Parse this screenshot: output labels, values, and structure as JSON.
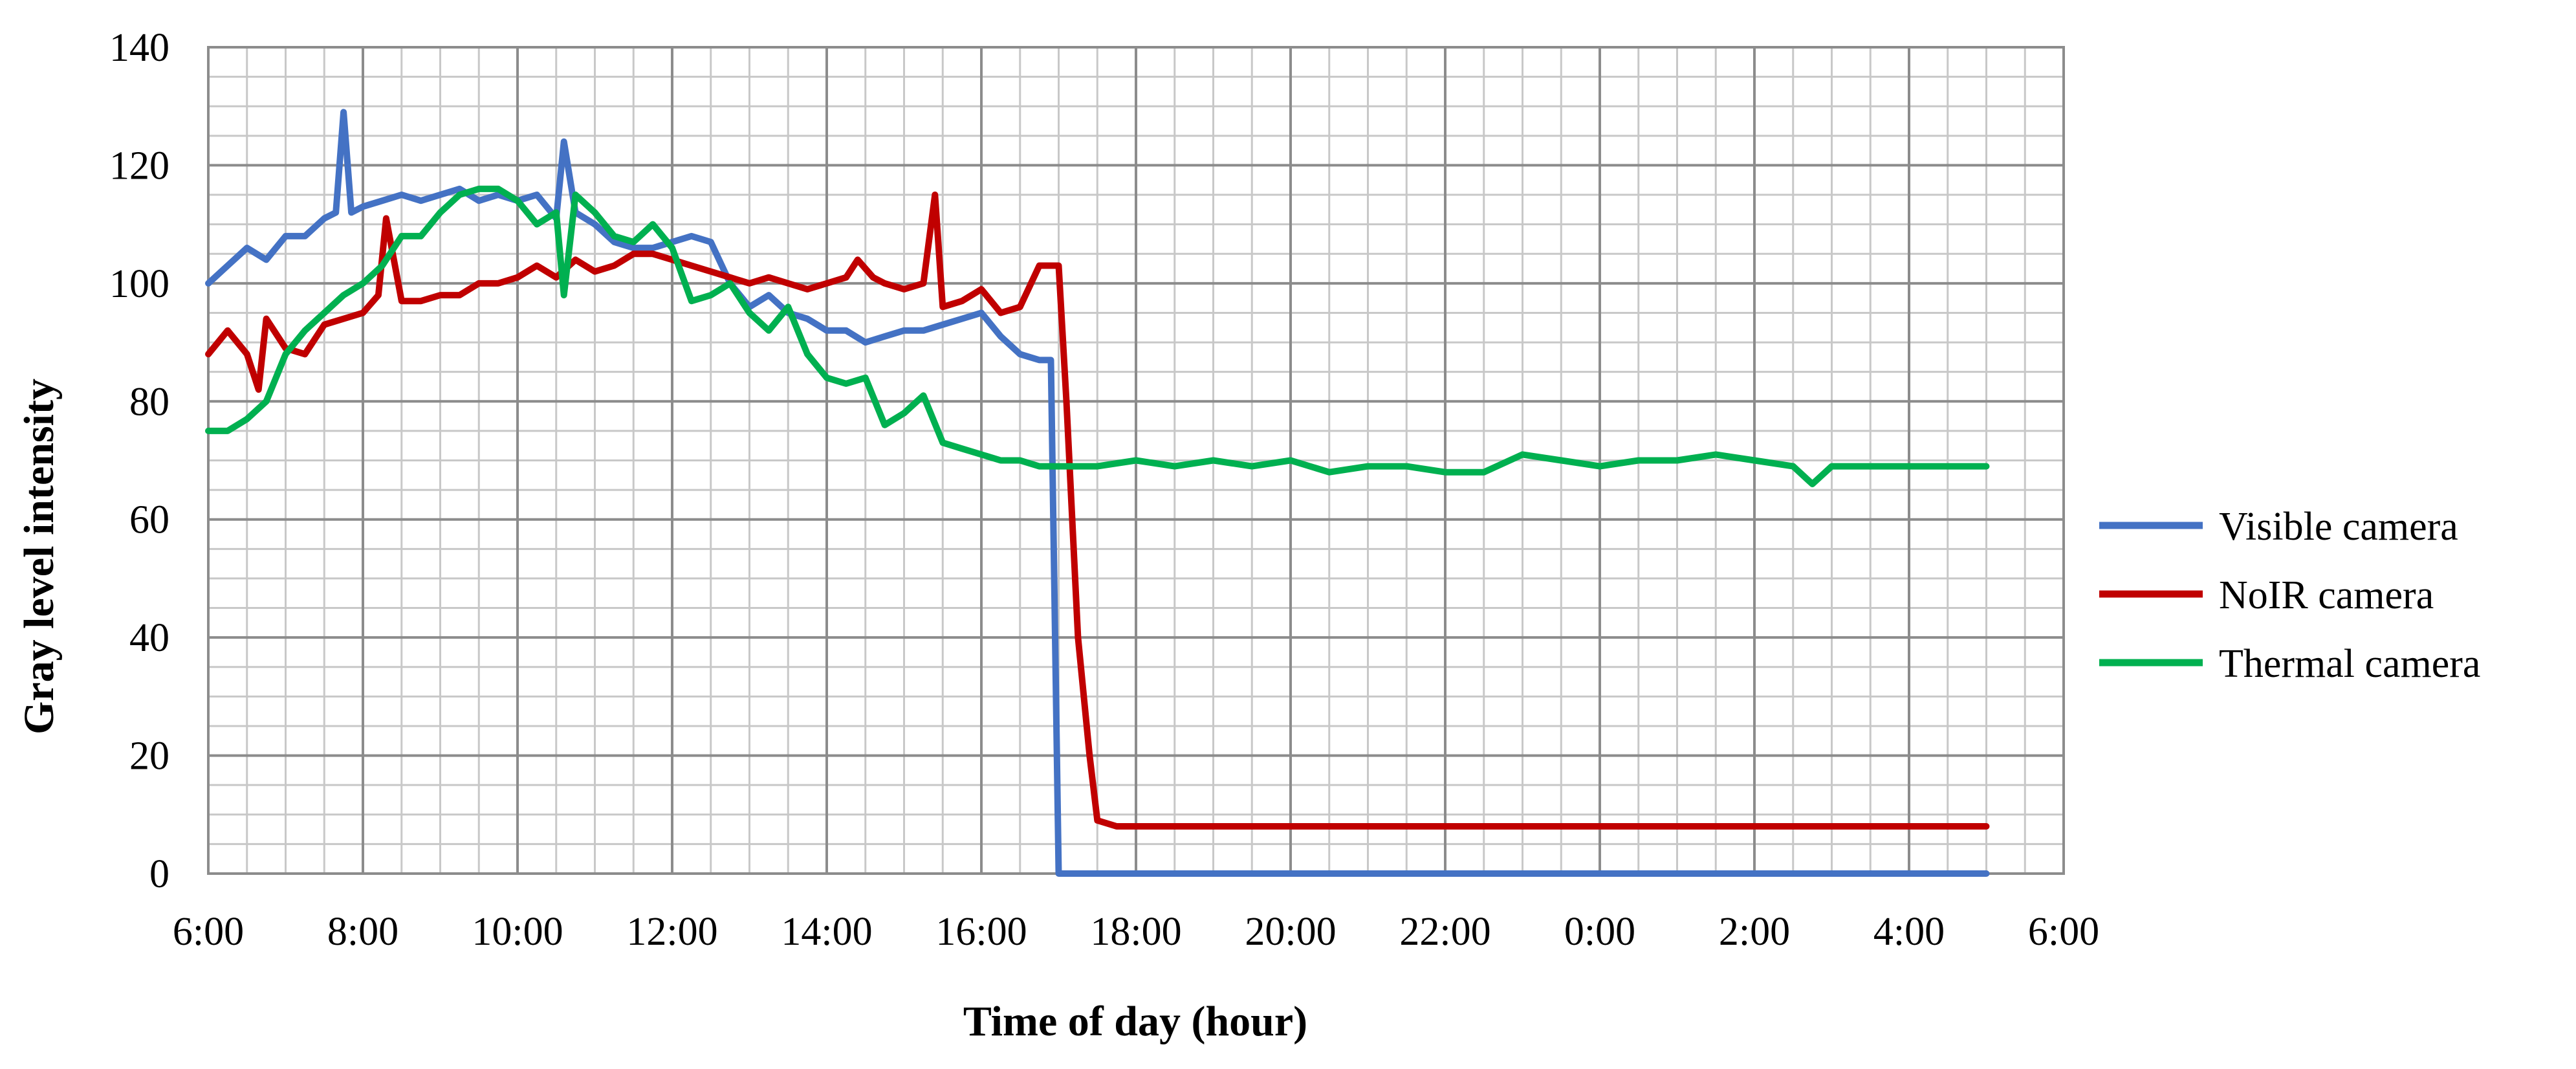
{
  "chart_data": {
    "type": "line",
    "xlabel": "Time of day (hour)",
    "ylabel": "Gray level intensity",
    "xlim": [
      6,
      30
    ],
    "ylim": [
      0,
      140
    ],
    "x_ticks": [
      "6:00",
      "8:00",
      "10:00",
      "12:00",
      "14:00",
      "16:00",
      "18:00",
      "20:00",
      "22:00",
      "0:00",
      "2:00",
      "4:00",
      "6:00"
    ],
    "y_ticks": [
      "0",
      "20",
      "40",
      "60",
      "80",
      "100",
      "120",
      "140"
    ],
    "grid": "major and minor",
    "legend_position": "right",
    "series": [
      {
        "name": "Visible camera",
        "color": "#4472C4",
        "points": [
          [
            6.0,
            100
          ],
          [
            6.25,
            103
          ],
          [
            6.5,
            106
          ],
          [
            6.75,
            104
          ],
          [
            7.0,
            108
          ],
          [
            7.25,
            108
          ],
          [
            7.5,
            111
          ],
          [
            7.65,
            112
          ],
          [
            7.75,
            129
          ],
          [
            7.85,
            112
          ],
          [
            8.0,
            113
          ],
          [
            8.25,
            114
          ],
          [
            8.5,
            115
          ],
          [
            8.75,
            114
          ],
          [
            9.0,
            115
          ],
          [
            9.25,
            116
          ],
          [
            9.5,
            114
          ],
          [
            9.75,
            115
          ],
          [
            10.0,
            114
          ],
          [
            10.25,
            115
          ],
          [
            10.5,
            111
          ],
          [
            10.6,
            124
          ],
          [
            10.75,
            112
          ],
          [
            11.0,
            110
          ],
          [
            11.25,
            107
          ],
          [
            11.5,
            106
          ],
          [
            11.75,
            106
          ],
          [
            12.0,
            107
          ],
          [
            12.25,
            108
          ],
          [
            12.5,
            107
          ],
          [
            12.75,
            100
          ],
          [
            13.0,
            96
          ],
          [
            13.25,
            98
          ],
          [
            13.5,
            95
          ],
          [
            13.75,
            94
          ],
          [
            14.0,
            92
          ],
          [
            14.25,
            92
          ],
          [
            14.5,
            90
          ],
          [
            14.75,
            91
          ],
          [
            15.0,
            92
          ],
          [
            15.25,
            92
          ],
          [
            15.5,
            93
          ],
          [
            15.75,
            94
          ],
          [
            16.0,
            95
          ],
          [
            16.25,
            91
          ],
          [
            16.5,
            88
          ],
          [
            16.75,
            87
          ],
          [
            16.9,
            87
          ],
          [
            17.0,
            0
          ],
          [
            18.0,
            0
          ],
          [
            20.0,
            0
          ],
          [
            22.0,
            0
          ],
          [
            24.0,
            0
          ],
          [
            26.0,
            0
          ],
          [
            28.0,
            0
          ],
          [
            29.0,
            0
          ]
        ]
      },
      {
        "name": "NoIR camera",
        "color": "#C00000",
        "points": [
          [
            6.0,
            88
          ],
          [
            6.25,
            92
          ],
          [
            6.5,
            88
          ],
          [
            6.65,
            82
          ],
          [
            6.75,
            94
          ],
          [
            7.0,
            89
          ],
          [
            7.25,
            88
          ],
          [
            7.5,
            93
          ],
          [
            7.75,
            94
          ],
          [
            8.0,
            95
          ],
          [
            8.2,
            98
          ],
          [
            8.3,
            111
          ],
          [
            8.5,
            97
          ],
          [
            8.75,
            97
          ],
          [
            9.0,
            98
          ],
          [
            9.25,
            98
          ],
          [
            9.5,
            100
          ],
          [
            9.75,
            100
          ],
          [
            10.0,
            101
          ],
          [
            10.25,
            103
          ],
          [
            10.5,
            101
          ],
          [
            10.75,
            104
          ],
          [
            11.0,
            102
          ],
          [
            11.25,
            103
          ],
          [
            11.5,
            105
          ],
          [
            11.75,
            105
          ],
          [
            12.0,
            104
          ],
          [
            12.25,
            103
          ],
          [
            12.5,
            102
          ],
          [
            12.75,
            101
          ],
          [
            13.0,
            100
          ],
          [
            13.25,
            101
          ],
          [
            13.5,
            100
          ],
          [
            13.75,
            99
          ],
          [
            14.0,
            100
          ],
          [
            14.25,
            101
          ],
          [
            14.4,
            104
          ],
          [
            14.6,
            101
          ],
          [
            14.75,
            100
          ],
          [
            15.0,
            99
          ],
          [
            15.25,
            100
          ],
          [
            15.4,
            115
          ],
          [
            15.5,
            96
          ],
          [
            15.75,
            97
          ],
          [
            16.0,
            99
          ],
          [
            16.25,
            95
          ],
          [
            16.5,
            96
          ],
          [
            16.75,
            103
          ],
          [
            17.0,
            103
          ],
          [
            17.1,
            80
          ],
          [
            17.25,
            40
          ],
          [
            17.4,
            20
          ],
          [
            17.5,
            9
          ],
          [
            17.75,
            8
          ],
          [
            18.0,
            8
          ],
          [
            19.0,
            8
          ],
          [
            20.0,
            8
          ],
          [
            21.0,
            8
          ],
          [
            22.0,
            8
          ],
          [
            23.0,
            8
          ],
          [
            24.0,
            8
          ],
          [
            25.0,
            8
          ],
          [
            26.0,
            8
          ],
          [
            27.0,
            8
          ],
          [
            28.0,
            8
          ],
          [
            29.0,
            8
          ]
        ]
      },
      {
        "name": "Thermal camera",
        "color": "#00B050",
        "points": [
          [
            6.0,
            75
          ],
          [
            6.25,
            75
          ],
          [
            6.5,
            77
          ],
          [
            6.75,
            80
          ],
          [
            7.0,
            88
          ],
          [
            7.25,
            92
          ],
          [
            7.5,
            95
          ],
          [
            7.75,
            98
          ],
          [
            8.0,
            100
          ],
          [
            8.25,
            103
          ],
          [
            8.5,
            108
          ],
          [
            8.75,
            108
          ],
          [
            9.0,
            112
          ],
          [
            9.25,
            115
          ],
          [
            9.5,
            116
          ],
          [
            9.75,
            116
          ],
          [
            10.0,
            114
          ],
          [
            10.25,
            110
          ],
          [
            10.5,
            112
          ],
          [
            10.6,
            98
          ],
          [
            10.75,
            115
          ],
          [
            11.0,
            112
          ],
          [
            11.25,
            108
          ],
          [
            11.5,
            107
          ],
          [
            11.75,
            110
          ],
          [
            12.0,
            106
          ],
          [
            12.25,
            97
          ],
          [
            12.5,
            98
          ],
          [
            12.75,
            100
          ],
          [
            13.0,
            95
          ],
          [
            13.25,
            92
          ],
          [
            13.5,
            96
          ],
          [
            13.75,
            88
          ],
          [
            14.0,
            84
          ],
          [
            14.25,
            83
          ],
          [
            14.5,
            84
          ],
          [
            14.75,
            76
          ],
          [
            15.0,
            78
          ],
          [
            15.25,
            81
          ],
          [
            15.5,
            73
          ],
          [
            15.75,
            72
          ],
          [
            16.0,
            71
          ],
          [
            16.25,
            70
          ],
          [
            16.5,
            70
          ],
          [
            16.75,
            69
          ],
          [
            17.0,
            69
          ],
          [
            17.5,
            69
          ],
          [
            18.0,
            70
          ],
          [
            18.5,
            69
          ],
          [
            19.0,
            70
          ],
          [
            19.5,
            69
          ],
          [
            20.0,
            70
          ],
          [
            20.5,
            68
          ],
          [
            21.0,
            69
          ],
          [
            21.5,
            69
          ],
          [
            22.0,
            68
          ],
          [
            22.5,
            68
          ],
          [
            23.0,
            71
          ],
          [
            23.5,
            70
          ],
          [
            24.0,
            69
          ],
          [
            24.5,
            70
          ],
          [
            25.0,
            70
          ],
          [
            25.5,
            71
          ],
          [
            26.0,
            70
          ],
          [
            26.5,
            69
          ],
          [
            26.75,
            66
          ],
          [
            27.0,
            69
          ],
          [
            27.5,
            69
          ],
          [
            28.0,
            69
          ],
          [
            28.5,
            69
          ],
          [
            29.0,
            69
          ]
        ]
      }
    ]
  }
}
